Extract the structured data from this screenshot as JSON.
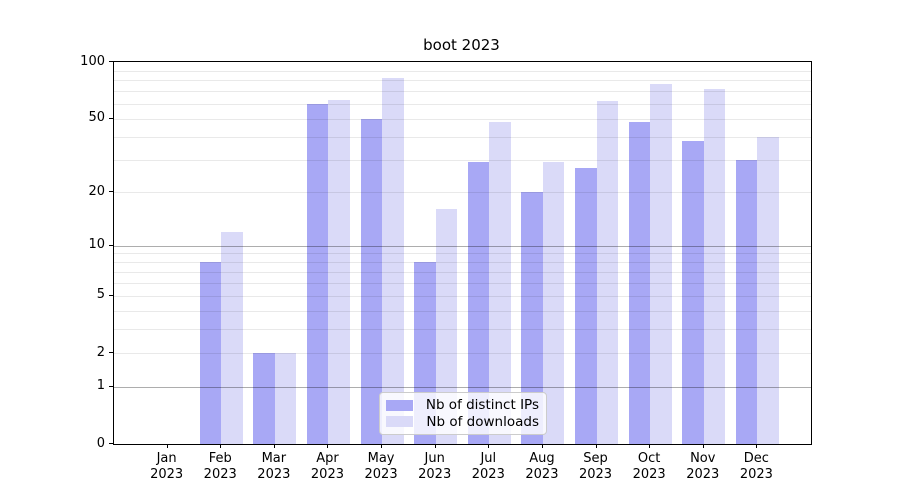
{
  "title": "boot 2023",
  "colors": {
    "distinct_ips": "#a8a8f5",
    "downloads": "#dadaf8",
    "grid_major": "#b2b2b2",
    "grid_minor": "#e8e8e8",
    "axis": "#000000",
    "legend_border": "#cccccc"
  },
  "legend": {
    "items": [
      {
        "label": "Nb of distinct IPs"
      },
      {
        "label": "Nb of downloads"
      }
    ]
  },
  "chart_data": {
    "type": "bar",
    "title": "boot 2023",
    "categories": [
      "Jan",
      "Feb",
      "Mar",
      "Apr",
      "May",
      "Jun",
      "Jul",
      "Aug",
      "Sep",
      "Oct",
      "Nov",
      "Dec"
    ],
    "category_year": "2023",
    "series": [
      {
        "name": "Nb of distinct IPs",
        "color": "#a8a8f5",
        "values": [
          0,
          8,
          2,
          60,
          50,
          8,
          29,
          20,
          27,
          48,
          38,
          30
        ]
      },
      {
        "name": "Nb of downloads",
        "color": "#dadaf8",
        "values": [
          0,
          12,
          2,
          63,
          82,
          16,
          48,
          29,
          62,
          76,
          72,
          40
        ]
      }
    ],
    "xlabel": "",
    "ylabel": "",
    "yscale": "log1p",
    "ylim": [
      0,
      100
    ],
    "yticks": [
      0,
      1,
      2,
      5,
      10,
      20,
      50,
      100
    ],
    "grid_major": [
      1,
      10
    ],
    "grid_minor": [
      2,
      3,
      4,
      5,
      6,
      7,
      8,
      9,
      20,
      30,
      40,
      50,
      60,
      70,
      80,
      90
    ],
    "grid_on": true,
    "grid_above_bars": true,
    "legend_position": "lower center"
  }
}
